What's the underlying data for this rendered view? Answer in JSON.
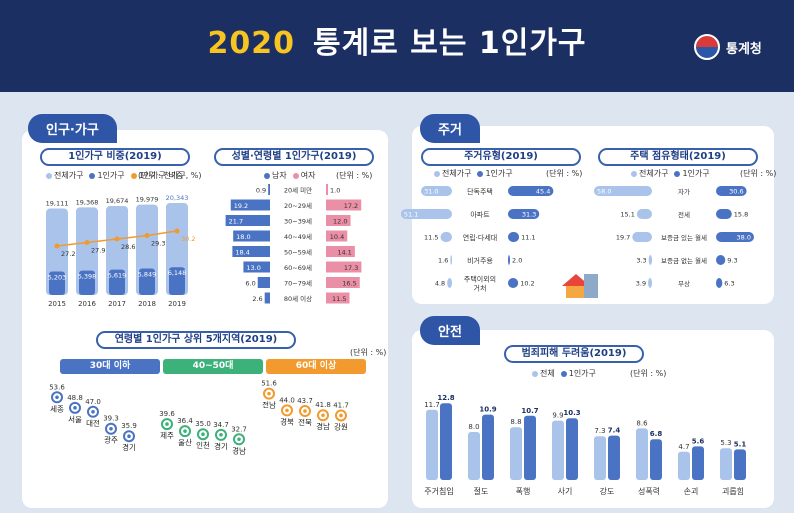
{
  "header": {
    "year": "2020",
    "title": "통계로 보는 1인가구",
    "org": "통계청"
  },
  "sections": {
    "population": "인구·가구",
    "housing": "주거",
    "safety": "안전"
  },
  "chart_data": [
    {
      "id": "ratio",
      "type": "bar",
      "title": "1인가구 비중(2019)",
      "unit": "(단위 : 천가구, %)",
      "legend": [
        "전체가구",
        "1인가구",
        "1인가구 비중"
      ],
      "categories": [
        "2015",
        "2016",
        "2017",
        "2018",
        "2019"
      ],
      "series": [
        {
          "name": "전체가구",
          "values": [
            19111,
            19368,
            19674,
            19979,
            20343
          ]
        },
        {
          "name": "1인가구",
          "values": [
            5203,
            5398,
            5619,
            5849,
            6148
          ]
        },
        {
          "name": "1인가구 비중",
          "values": [
            27.2,
            27.9,
            28.6,
            29.3,
            30.2
          ]
        }
      ],
      "labels": {
        "total": [
          "19,111",
          "19,368",
          "19,674",
          "19,979",
          "20,343"
        ],
        "single": [
          "5,203",
          "5,398",
          "5,619",
          "5,849",
          "6,148"
        ]
      }
    },
    {
      "id": "sexage",
      "type": "bar",
      "title": "성별·연령별 1인가구(2019)",
      "unit": "(단위 : %)",
      "legend": [
        "남자",
        "여자"
      ],
      "categories": [
        "20세 미만",
        "20~29세",
        "30~39세",
        "40~49세",
        "50~59세",
        "60~69세",
        "70~79세",
        "80세 이상"
      ],
      "series": [
        {
          "name": "남자",
          "values": [
            0.9,
            19.2,
            21.7,
            18.0,
            18.4,
            13.0,
            6.0,
            2.6
          ]
        },
        {
          "name": "여자",
          "values": [
            1.0,
            17.2,
            12.0,
            10.4,
            14.1,
            17.3,
            16.5,
            11.5
          ]
        }
      ]
    },
    {
      "id": "regions",
      "type": "scatter",
      "title": "연령별 1인가구 상위 5개지역(2019)",
      "unit": "(단위 : %)",
      "groups": [
        {
          "name": "30대 이하",
          "regions": [
            "세종",
            "서울",
            "대전",
            "광주",
            "경기"
          ],
          "values": [
            53.6,
            48.8,
            47.0,
            39.3,
            35.9
          ]
        },
        {
          "name": "40~50대",
          "regions": [
            "제주",
            "울산",
            "인천",
            "경기",
            "경남"
          ],
          "values": [
            39.6,
            36.4,
            35.0,
            34.7,
            32.7
          ]
        },
        {
          "name": "60대 이상",
          "regions": [
            "전남",
            "경북",
            "전북",
            "경남",
            "강원"
          ],
          "values": [
            51.6,
            44.0,
            43.7,
            41.8,
            41.7
          ]
        }
      ]
    },
    {
      "id": "housetype",
      "type": "bar",
      "title": "주거유형(2019)",
      "unit": "(단위 : %)",
      "legend": [
        "전체가구",
        "1인가구"
      ],
      "categories": [
        "단독주택",
        "아파트",
        "연립·다세대",
        "비거주용",
        "주택이외의 거처"
      ],
      "series": [
        {
          "name": "전체가구",
          "values": [
            31.0,
            51.1,
            11.5,
            1.6,
            4.8
          ]
        },
        {
          "name": "1인가구",
          "values": [
            45.4,
            31.3,
            11.1,
            2.0,
            10.2
          ]
        }
      ]
    },
    {
      "id": "tenure",
      "type": "bar",
      "title": "주택 점유형태(2019)",
      "unit": "(단위 : %)",
      "legend": [
        "전체가구",
        "1인가구"
      ],
      "categories": [
        "자가",
        "전세",
        "보증금 있는 월세",
        "보증금 없는 월세",
        "무상"
      ],
      "series": [
        {
          "name": "전체가구",
          "values": [
            58.0,
            15.1,
            19.7,
            3.3,
            3.9
          ]
        },
        {
          "name": "1인가구",
          "values": [
            30.6,
            15.8,
            38.0,
            9.3,
            6.3
          ]
        }
      ]
    },
    {
      "id": "crime",
      "type": "bar",
      "title": "범죄피해 두려움(2019)",
      "unit": "(단위 : %)",
      "legend": [
        "전체",
        "1인가구"
      ],
      "categories": [
        "주거침입",
        "절도",
        "폭행",
        "사기",
        "강도",
        "성폭력",
        "손괴",
        "괴롭힘"
      ],
      "series": [
        {
          "name": "전체",
          "values": [
            11.7,
            8.0,
            8.8,
            9.9,
            7.3,
            8.6,
            4.7,
            5.3
          ]
        },
        {
          "name": "1인가구",
          "values": [
            12.8,
            10.9,
            10.7,
            10.3,
            7.4,
            6.8,
            5.6,
            5.1
          ]
        }
      ]
    }
  ],
  "colors": {
    "navy": "#1b2f63",
    "blue": "#4b73c4",
    "light": "#a9c3ea",
    "pink": "#ea8fa5",
    "orange": "#f29a2e",
    "green": "#3cb17a",
    "yellow": "#f7c422"
  }
}
